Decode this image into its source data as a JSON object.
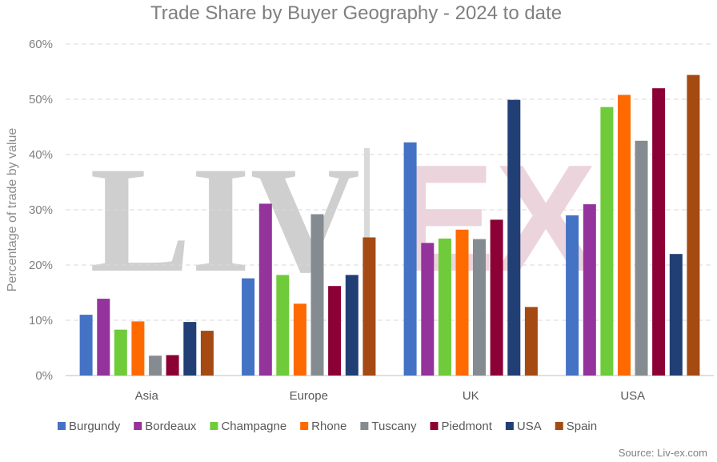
{
  "chart_data": {
    "type": "bar",
    "title": "Trade Share by Buyer Geography - 2024 to date",
    "xlabel": "",
    "ylabel": "Percentage of trade by value",
    "ylim": [
      0,
      60
    ],
    "yticks": [
      "0%",
      "10%",
      "20%",
      "30%",
      "40%",
      "50%",
      "60%"
    ],
    "grid": true,
    "legend_position": "bottom",
    "categories": [
      "Asia",
      "Europe",
      "UK",
      "USA"
    ],
    "series": [
      {
        "name": "Burgundy",
        "color": "#4472c4",
        "values": [
          11.0,
          17.6,
          42.2,
          29.0
        ]
      },
      {
        "name": "Bordeaux",
        "color": "#93339b",
        "values": [
          13.9,
          31.1,
          24.0,
          31.0
        ]
      },
      {
        "name": "Champagne",
        "color": "#6fcb3a",
        "values": [
          8.3,
          18.2,
          24.8,
          48.6
        ]
      },
      {
        "name": "Rhone",
        "color": "#ff6a00",
        "values": [
          9.8,
          13.0,
          26.4,
          50.8
        ]
      },
      {
        "name": "Tuscany",
        "color": "#858c91",
        "values": [
          3.6,
          29.2,
          24.7,
          42.5
        ]
      },
      {
        "name": "Piedmont",
        "color": "#8b0035",
        "values": [
          3.7,
          16.2,
          28.2,
          52.0
        ]
      },
      {
        "name": "USA",
        "color": "#213f74",
        "values": [
          9.7,
          18.2,
          49.9,
          22.0
        ]
      },
      {
        "name": "Spain",
        "color": "#a44a12",
        "values": [
          8.1,
          25.0,
          12.4,
          54.4
        ]
      }
    ]
  },
  "watermark": {
    "left": "LIV",
    "right": "EX"
  },
  "source": "Source: Liv-ex.com"
}
